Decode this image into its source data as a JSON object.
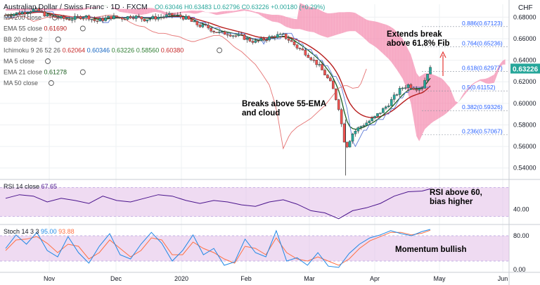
{
  "header": {
    "symbol": "Australian Dollar / Swiss Franc · 1D · FXCM",
    "ohlc": "O0.63046  H0.63483  L0.62796  C0.63226  +0.00180 (+0.29%)",
    "currency": "CHF"
  },
  "indicators": [
    {
      "label": "MA 200 close",
      "values": []
    },
    {
      "label": "EMA 55 close",
      "values": [
        {
          "v": "0.61690",
          "color": "#b71c1c"
        }
      ]
    },
    {
      "label": "BB 20 close 2",
      "values": []
    },
    {
      "label": "Ichimoku 9 26 52 26",
      "values": [
        {
          "v": "0.62064",
          "color": "#c62828"
        },
        {
          "v": "0.60346",
          "color": "#1565c0"
        },
        {
          "v": "0.63226",
          "color": "#2e7d32"
        },
        {
          "v": "0.58560",
          "color": "#2e7d32"
        },
        {
          "v": "0.60380",
          "color": "#c62828"
        }
      ]
    },
    {
      "label": "MA 5 close",
      "values": []
    },
    {
      "label": "EMA 21 close",
      "values": [
        {
          "v": "0.61278",
          "color": "#1b5e20"
        }
      ]
    },
    {
      "label": "MA 50 close",
      "values": []
    }
  ],
  "annotations": {
    "fib_break": "Extends break\nabove 61.8% Fib",
    "ema_break": "Breaks above 55-EMA\nand cloud",
    "rsi_note": "RSI above 60,\nbias higher",
    "stoch_note": "Momentum bullish"
  },
  "colors": {
    "up": "#26a69a",
    "down": "#ef5350",
    "cloud_bear": "#f48fb1",
    "cloud_bull": "#a5d6a7",
    "ema55": "#b71c1c",
    "ema21": "#1b5e20",
    "kijun": "#5c7ad6",
    "lagging": "#e57373",
    "rsi": "#4a148c",
    "stoch_k": "#1e88e5",
    "stoch_d": "#ff7043",
    "band": "#e1bee7"
  },
  "chart_data": [
    {
      "type": "candlestick",
      "x_ticks": [
        "Nov",
        "Dec",
        "2020",
        "Feb",
        "Mar",
        "Apr",
        "May",
        "Jun"
      ],
      "ylim": [
        0.53,
        0.692
      ],
      "y_ticks": [
        "0.68000",
        "0.66000",
        "0.64000",
        "0.62000",
        "0.60000",
        "0.58000",
        "0.56000",
        "0.54000"
      ],
      "y_tick_values": [
        0.68,
        0.66,
        0.64,
        0.62,
        0.6,
        0.58,
        0.56,
        0.54
      ],
      "last_price": "0.63226",
      "last_value": 0.63226,
      "close_path": [
        [
          0,
          0.682
        ],
        [
          10,
          0.683
        ],
        [
          20,
          0.684
        ],
        [
          30,
          0.685
        ],
        [
          40,
          0.687
        ],
        [
          50,
          0.685
        ],
        [
          60,
          0.681
        ],
        [
          70,
          0.68
        ],
        [
          80,
          0.679
        ],
        [
          90,
          0.678
        ],
        [
          100,
          0.679
        ],
        [
          110,
          0.681
        ],
        [
          120,
          0.68
        ],
        [
          130,
          0.676
        ],
        [
          140,
          0.678
        ],
        [
          150,
          0.68
        ],
        [
          160,
          0.68
        ],
        [
          170,
          0.679
        ],
        [
          180,
          0.681
        ],
        [
          190,
          0.68
        ],
        [
          200,
          0.678
        ],
        [
          210,
          0.679
        ],
        [
          220,
          0.68
        ],
        [
          230,
          0.681
        ],
        [
          240,
          0.682
        ],
        [
          250,
          0.681
        ],
        [
          260,
          0.679
        ],
        [
          270,
          0.675
        ],
        [
          280,
          0.672
        ],
        [
          290,
          0.671
        ],
        [
          300,
          0.667
        ],
        [
          310,
          0.665
        ],
        [
          320,
          0.665
        ],
        [
          330,
          0.663
        ],
        [
          340,
          0.662
        ],
        [
          350,
          0.659
        ],
        [
          360,
          0.657
        ],
        [
          370,
          0.659
        ],
        [
          380,
          0.661
        ],
        [
          390,
          0.663
        ],
        [
          400,
          0.663
        ],
        [
          410,
          0.658
        ],
        [
          420,
          0.652
        ],
        [
          430,
          0.648
        ],
        [
          440,
          0.642
        ],
        [
          450,
          0.636
        ],
        [
          460,
          0.627
        ],
        [
          470,
          0.617
        ],
        [
          480,
          0.596
        ],
        [
          490,
          0.558
        ],
        [
          500,
          0.572
        ],
        [
          510,
          0.578
        ],
        [
          520,
          0.582
        ],
        [
          530,
          0.586
        ],
        [
          540,
          0.592
        ],
        [
          550,
          0.598
        ],
        [
          560,
          0.606
        ],
        [
          570,
          0.614
        ],
        [
          580,
          0.617
        ],
        [
          590,
          0.614
        ],
        [
          600,
          0.615
        ],
        [
          610,
          0.632
        ]
      ],
      "fib_levels": [
        {
          "label": "0.886(0.67123)",
          "value": 0.67123
        },
        {
          "label": "0.764(0.65236)",
          "value": 0.65236
        },
        {
          "label": "0.618(0.62977)",
          "value": 0.62977
        },
        {
          "label": "0.5(0.61152)",
          "value": 0.61152
        },
        {
          "label": "0.382(0.59326)",
          "value": 0.59326
        },
        {
          "label": "0.236(0.57067)",
          "value": 0.57067
        }
      ]
    },
    {
      "type": "line",
      "name": "RSI 14 close",
      "value_label": "67.65",
      "ylim": [
        20,
        80
      ],
      "y_ticks": [
        "40.00"
      ],
      "y_tick_values": [
        40
      ],
      "band": [
        30,
        70
      ],
      "path": [
        [
          0,
          55
        ],
        [
          20,
          60
        ],
        [
          40,
          58
        ],
        [
          60,
          50
        ],
        [
          80,
          55
        ],
        [
          100,
          52
        ],
        [
          120,
          48
        ],
        [
          140,
          58
        ],
        [
          160,
          52
        ],
        [
          180,
          50
        ],
        [
          200,
          55
        ],
        [
          220,
          60
        ],
        [
          240,
          58
        ],
        [
          260,
          52
        ],
        [
          280,
          48
        ],
        [
          300,
          52
        ],
        [
          320,
          50
        ],
        [
          340,
          46
        ],
        [
          360,
          44
        ],
        [
          380,
          50
        ],
        [
          400,
          53
        ],
        [
          420,
          47
        ],
        [
          440,
          38
        ],
        [
          460,
          35
        ],
        [
          480,
          27
        ],
        [
          500,
          38
        ],
        [
          520,
          42
        ],
        [
          540,
          48
        ],
        [
          560,
          58
        ],
        [
          580,
          64
        ],
        [
          600,
          65
        ],
        [
          612,
          68
        ]
      ]
    },
    {
      "type": "line",
      "name": "Stoch 14 3 3",
      "k_label": "95.00",
      "d_label": "93.88",
      "ylim": [
        -5,
        105
      ],
      "y_ticks": [
        "80.00",
        "0.00"
      ],
      "y_tick_values": [
        80,
        0
      ],
      "band": [
        20,
        80
      ],
      "k": [
        [
          0,
          50
        ],
        [
          15,
          82
        ],
        [
          30,
          60
        ],
        [
          45,
          88
        ],
        [
          60,
          45
        ],
        [
          75,
          30
        ],
        [
          90,
          78
        ],
        [
          105,
          40
        ],
        [
          120,
          15
        ],
        [
          135,
          55
        ],
        [
          150,
          85
        ],
        [
          165,
          35
        ],
        [
          180,
          25
        ],
        [
          195,
          60
        ],
        [
          210,
          88
        ],
        [
          225,
          62
        ],
        [
          240,
          20
        ],
        [
          255,
          45
        ],
        [
          270,
          82
        ],
        [
          285,
          35
        ],
        [
          300,
          50
        ],
        [
          315,
          10
        ],
        [
          330,
          18
        ],
        [
          345,
          72
        ],
        [
          360,
          40
        ],
        [
          375,
          30
        ],
        [
          390,
          92
        ],
        [
          405,
          20
        ],
        [
          420,
          28
        ],
        [
          435,
          10
        ],
        [
          450,
          40
        ],
        [
          465,
          8
        ],
        [
          480,
          5
        ],
        [
          495,
          38
        ],
        [
          510,
          60
        ],
        [
          525,
          75
        ],
        [
          540,
          82
        ],
        [
          555,
          92
        ],
        [
          570,
          85
        ],
        [
          585,
          80
        ],
        [
          600,
          90
        ],
        [
          612,
          95
        ]
      ],
      "d": [
        [
          0,
          45
        ],
        [
          15,
          70
        ],
        [
          30,
          72
        ],
        [
          45,
          78
        ],
        [
          60,
          62
        ],
        [
          75,
          40
        ],
        [
          90,
          60
        ],
        [
          105,
          55
        ],
        [
          120,
          25
        ],
        [
          135,
          40
        ],
        [
          150,
          70
        ],
        [
          165,
          50
        ],
        [
          180,
          30
        ],
        [
          195,
          45
        ],
        [
          210,
          75
        ],
        [
          225,
          70
        ],
        [
          240,
          35
        ],
        [
          255,
          35
        ],
        [
          270,
          65
        ],
        [
          285,
          50
        ],
        [
          300,
          40
        ],
        [
          315,
          25
        ],
        [
          330,
          15
        ],
        [
          345,
          55
        ],
        [
          360,
          50
        ],
        [
          375,
          35
        ],
        [
          390,
          75
        ],
        [
          405,
          40
        ],
        [
          420,
          25
        ],
        [
          435,
          20
        ],
        [
          450,
          30
        ],
        [
          465,
          20
        ],
        [
          480,
          10
        ],
        [
          495,
          25
        ],
        [
          510,
          50
        ],
        [
          525,
          68
        ],
        [
          540,
          78
        ],
        [
          555,
          88
        ],
        [
          570,
          88
        ],
        [
          585,
          82
        ],
        [
          600,
          86
        ],
        [
          612,
          93
        ]
      ]
    }
  ]
}
